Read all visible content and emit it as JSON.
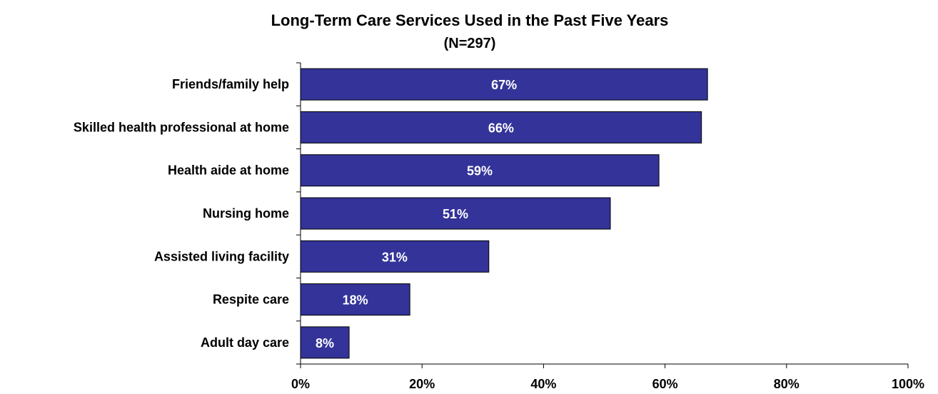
{
  "chart_data": {
    "type": "bar",
    "orientation": "horizontal",
    "title": "Long-Term Care Services Used in the Past Five Years",
    "subtitle": "(N=297)",
    "categories": [
      "Friends/family help",
      "Skilled health professional at home",
      "Health aide at home",
      "Nursing home",
      "Assisted living facility",
      "Respite care",
      "Adult day care"
    ],
    "values": [
      67,
      66,
      59,
      51,
      31,
      18,
      8
    ],
    "data_labels": [
      "67%",
      "66%",
      "59%",
      "51%",
      "31%",
      "18%",
      "8%"
    ],
    "xlim": [
      0,
      100
    ],
    "xticks": [
      0,
      20,
      40,
      60,
      80,
      100
    ],
    "xtick_labels": [
      "0%",
      "20%",
      "40%",
      "60%",
      "80%",
      "100%"
    ],
    "grid": false,
    "legend": "none",
    "bar_color": "#333399",
    "bar_edge_color": "#000000"
  }
}
